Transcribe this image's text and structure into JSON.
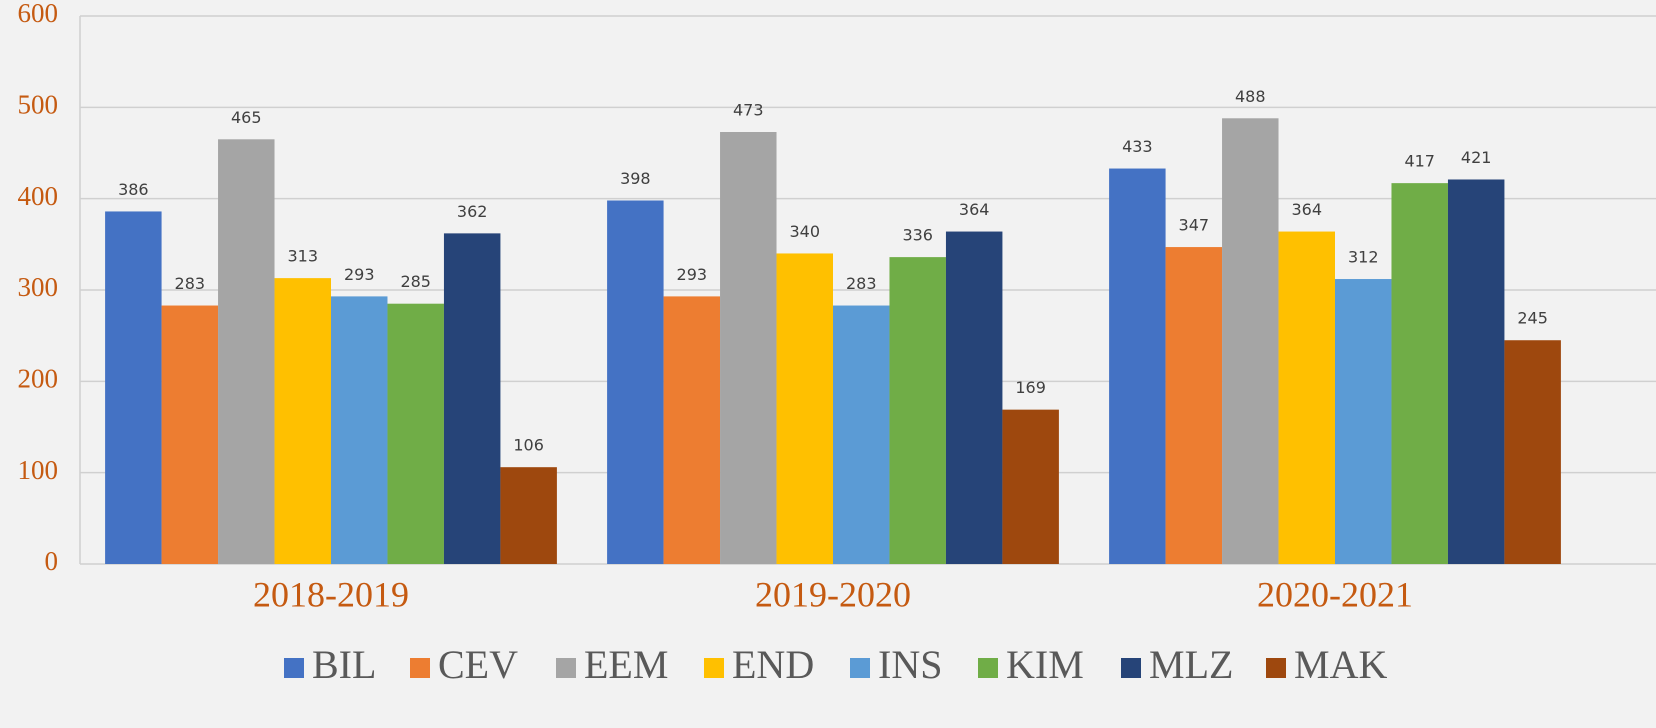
{
  "chart_data": {
    "type": "bar",
    "categories": [
      "2018-2019",
      "2019-2020",
      "2020-2021"
    ],
    "series": [
      {
        "name": "BIL",
        "color": "#4472c4",
        "values": [
          386,
          398,
          433
        ]
      },
      {
        "name": "CEV",
        "color": "#ed7d31",
        "values": [
          283,
          293,
          347
        ]
      },
      {
        "name": "EEM",
        "color": "#a5a5a5",
        "values": [
          465,
          473,
          488
        ]
      },
      {
        "name": "END",
        "color": "#ffc000",
        "values": [
          313,
          340,
          364
        ]
      },
      {
        "name": "INS",
        "color": "#5b9bd5",
        "values": [
          293,
          283,
          312
        ]
      },
      {
        "name": "KIM",
        "color": "#70ad47",
        "values": [
          285,
          336,
          417
        ]
      },
      {
        "name": "MLZ",
        "color": "#264478",
        "values": [
          362,
          364,
          421
        ]
      },
      {
        "name": "MAK",
        "color": "#9e480e",
        "values": [
          106,
          169,
          245
        ]
      }
    ],
    "ylim": [
      0,
      600
    ],
    "yticks": [
      0,
      100,
      200,
      300,
      400,
      500,
      600
    ],
    "grid": true,
    "legend": "bottom"
  }
}
